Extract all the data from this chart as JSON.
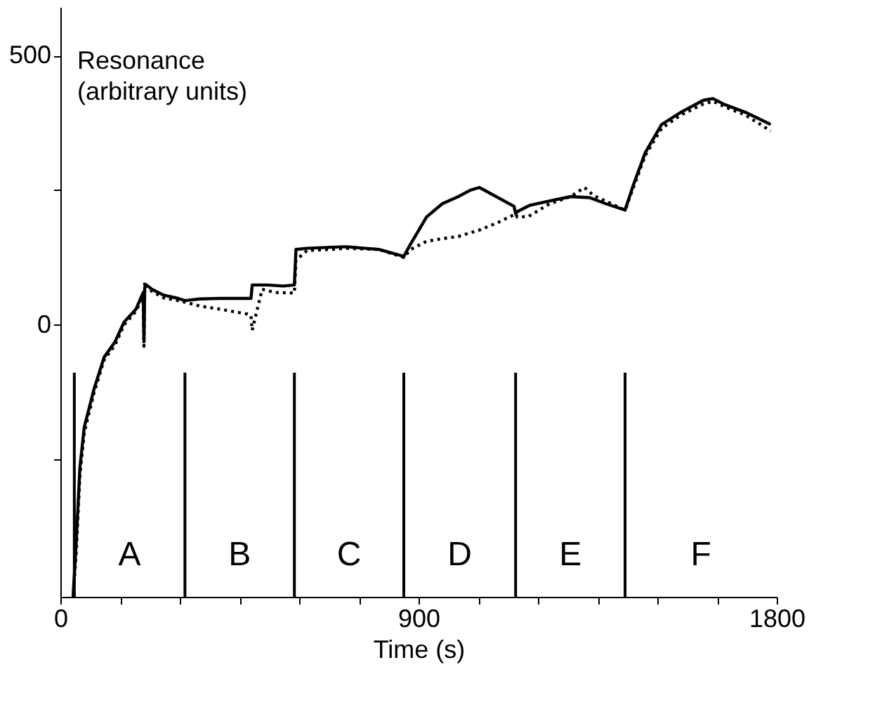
{
  "chart_data": {
    "type": "line",
    "xlabel": "Time (s)",
    "ylabel": "Resonance\n(arbitrary units)",
    "xlim": [
      0,
      1800
    ],
    "ylim": [
      -505,
      590
    ],
    "xticks": [
      0,
      {
        "value": 150,
        "label": null
      },
      {
        "value": 300,
        "label": null
      },
      {
        "value": 450,
        "label": null
      },
      {
        "value": 600,
        "label": null
      },
      {
        "value": 750,
        "label": null
      },
      900,
      {
        "value": 1050,
        "label": null
      },
      {
        "value": 1200,
        "label": null
      },
      {
        "value": 1350,
        "label": null
      },
      {
        "value": 1500,
        "label": null
      },
      {
        "value": 1650,
        "label": null
      },
      1800
    ],
    "yticks": [
      {
        "value": -250,
        "label": null
      },
      0,
      {
        "value": 250,
        "label": null
      },
      500
    ],
    "grid": false,
    "series": [
      {
        "color": "#000000",
        "line_style": "solid",
        "x": [
          32,
          40,
          49,
          60,
          85,
          110,
          137,
          160,
          190,
          208,
          210,
          212,
          216,
          230,
          260,
          296,
          313,
          350,
          401,
          479,
          482,
          520,
          560,
          588,
          592,
          620,
          680,
          718,
          800,
          863,
          880,
          920,
          960,
          1000,
          1030,
          1053,
          1140,
          1144,
          1148,
          1180,
          1230,
          1282,
          1330,
          1370,
          1419,
          1440,
          1470,
          1511,
          1560,
          1616,
          1640,
          1669,
          1720,
          1785
        ],
        "values": [
          -505,
          -400,
          -265,
          -190,
          -118,
          -60,
          -32,
          5,
          29,
          60,
          -32,
          70,
          74,
          66,
          55,
          49,
          45,
          48,
          49,
          49,
          74,
          74,
          72,
          74,
          140,
          142,
          144,
          145,
          140,
          127,
          150,
          200,
          225,
          238,
          250,
          255,
          220,
          206,
          210,
          222,
          230,
          238,
          236,
          225,
          213,
          260,
          320,
          372,
          395,
          417,
          420,
          409,
          395,
          372
        ]
      },
      {
        "color": "#000000",
        "line_style": "dotted",
        "x": [
          32,
          40,
          49,
          60,
          85,
          110,
          137,
          160,
          190,
          208,
          210,
          212,
          216,
          230,
          260,
          296,
          313,
          350,
          401,
          470,
          479,
          482,
          507,
          540,
          588,
          592,
          620,
          680,
          718,
          800,
          863,
          880,
          920,
          960,
          1000,
          1053,
          1100,
          1144,
          1148,
          1176,
          1230,
          1282,
          1317,
          1340,
          1419,
          1440,
          1470,
          1511,
          1560,
          1616,
          1640,
          1669,
          1720,
          1785
        ],
        "values": [
          -505,
          -420,
          -280,
          -200,
          -125,
          -65,
          -38,
          0,
          25,
          55,
          -40,
          80,
          72,
          62,
          50,
          45,
          42,
          35,
          29,
          20,
          17,
          -10,
          66,
          60,
          59,
          120,
          138,
          140,
          142,
          140,
          125,
          140,
          155,
          160,
          164,
          176,
          190,
          206,
          200,
          201,
          225,
          238,
          255,
          240,
          213,
          255,
          315,
          365,
          390,
          410,
          415,
          405,
          390,
          360
        ]
      }
    ],
    "ref_lines": [
      {
        "axis": "x",
        "value": 35
      },
      {
        "axis": "x",
        "value": 313
      },
      {
        "axis": "x",
        "value": 588
      },
      {
        "axis": "x",
        "value": 863
      },
      {
        "axis": "x",
        "value": 1144
      },
      {
        "axis": "x",
        "value": 1419
      }
    ],
    "annotations": [
      "A",
      "B",
      "C",
      "D",
      "E",
      "F"
    ]
  }
}
